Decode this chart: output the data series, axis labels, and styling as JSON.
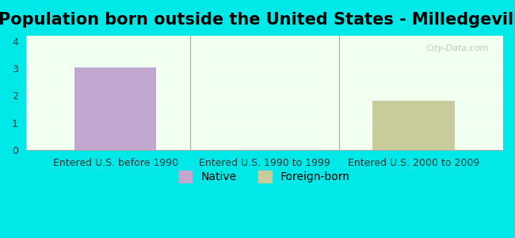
{
  "title": "Population born outside the United States - Milledgeville",
  "categories": [
    "Entered U.S. before 1990",
    "Entered U.S. 1990 to 1999",
    "Entered U.S. 2000 to 2009"
  ],
  "native_values": [
    3.04,
    0,
    0
  ],
  "foreign_values": [
    0,
    0,
    1.82
  ],
  "native_color": "#c0a8d0",
  "foreign_color": "#c8cc9a",
  "background_color": "#00e8e8",
  "plot_bg_color_top": "#f0fff0",
  "plot_bg_color_bottom": "#e8ffe8",
  "ylim": [
    0,
    4.2
  ],
  "yticks": [
    0,
    1,
    2,
    3,
    4
  ],
  "bar_width": 0.55,
  "legend_native_label": "Native",
  "legend_foreign_label": "Foreign-born",
  "watermark": "City-Data.com",
  "title_fontsize": 15,
  "tick_fontsize": 9,
  "legend_fontsize": 10
}
